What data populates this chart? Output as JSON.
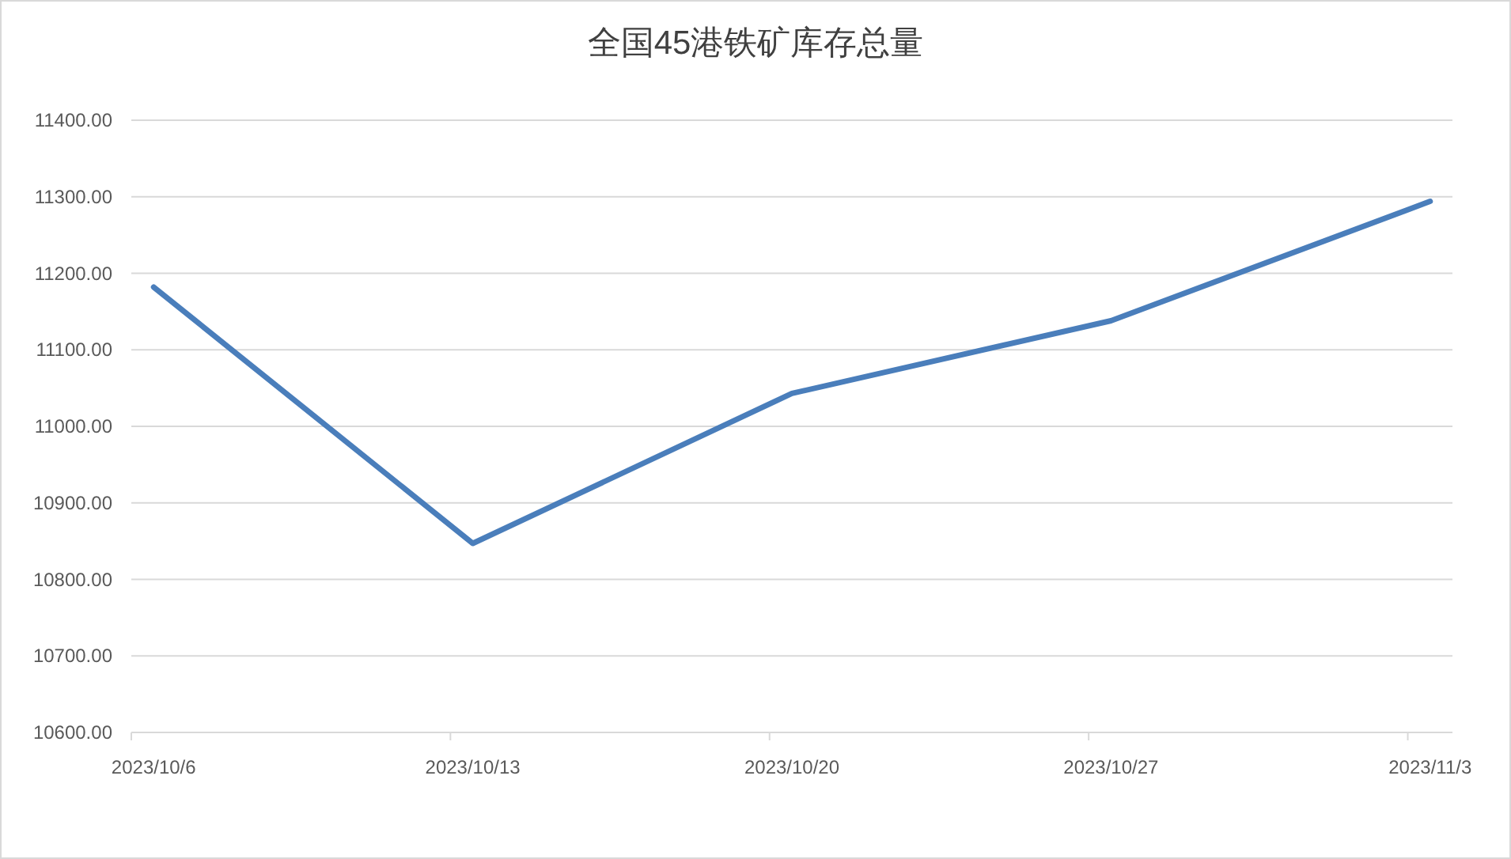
{
  "chart_data": {
    "type": "line",
    "title": "全国45港铁矿库存总量",
    "categories": [
      "2023/10/6",
      "2023/10/13",
      "2023/10/20",
      "2023/10/27",
      "2023/11/3"
    ],
    "series": [
      {
        "color": "#4a7ebb",
        "values": [
          11182,
          10847,
          11043,
          11138,
          11294
        ]
      }
    ],
    "ylim": [
      10600,
      11400
    ],
    "yticks": [
      {
        "value": 10600,
        "label": "10600.00"
      },
      {
        "value": 10700,
        "label": "10700.00"
      },
      {
        "value": 10800,
        "label": "10800.00"
      },
      {
        "value": 10900,
        "label": "10900.00"
      },
      {
        "value": 11000,
        "label": "11000.00"
      },
      {
        "value": 11100,
        "label": "11100.00"
      },
      {
        "value": 11200,
        "label": "11200.00"
      },
      {
        "value": 11300,
        "label": "11300.00"
      },
      {
        "value": 11400,
        "label": "11400.00"
      }
    ],
    "grid": "y",
    "marker": "none",
    "line_style": "solid"
  }
}
